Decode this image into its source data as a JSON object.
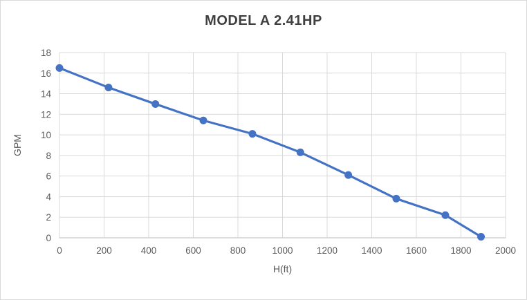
{
  "chart_data": {
    "type": "line",
    "title": "MODEL A 2.41HP",
    "xlabel": "H(ft)",
    "ylabel": "GPM",
    "x": [
      0,
      220,
      430,
      645,
      865,
      1080,
      1295,
      1510,
      1730,
      1890
    ],
    "y": [
      16.5,
      14.6,
      13.0,
      11.4,
      10.1,
      8.3,
      6.1,
      3.8,
      2.2,
      0.1
    ],
    "xlim": [
      0,
      2000
    ],
    "ylim": [
      0,
      18
    ],
    "xticks": [
      0,
      200,
      400,
      600,
      800,
      1000,
      1200,
      1400,
      1600,
      1800,
      2000
    ],
    "yticks": [
      0,
      2,
      4,
      6,
      8,
      10,
      12,
      14,
      16,
      18
    ],
    "grid": true,
    "legend": "none",
    "marker": "circle",
    "line_color": "#4472C4",
    "gridline_color": "#D9D9D9",
    "axis_line_color": "#D1D1D1",
    "tick_text_color": "#595959",
    "title_color": "#404040",
    "background_color": "#FFFFFF",
    "border_color": "#D9D9D9"
  }
}
